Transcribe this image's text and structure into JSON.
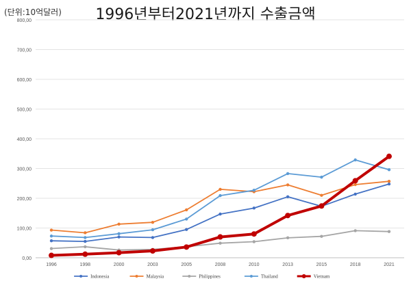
{
  "chart_data": {
    "type": "line",
    "title": "1996년부터2021년까지 수출금액",
    "unit_label": "(단위:10억달러)",
    "xlabel": "",
    "ylabel": "",
    "categories": [
      "1996",
      "1998",
      "2000",
      "2003",
      "2005",
      "2008",
      "2010",
      "2013",
      "2015",
      "2018",
      "2021"
    ],
    "ylim": [
      0,
      800
    ],
    "yticks": [
      "0,00",
      "100,00",
      "200,00",
      "300,00",
      "400,00",
      "500,00",
      "600,00",
      "700,00",
      "800,00"
    ],
    "grid": true,
    "legend_position": "bottom",
    "series": [
      {
        "name": "Indonesia",
        "color": "#4472c4",
        "values": [
          57,
          55,
          70,
          68,
          95,
          147,
          167,
          205,
          173,
          214,
          248
        ]
      },
      {
        "name": "Malaysia",
        "color": "#ed7d31",
        "values": [
          93,
          84,
          113,
          119,
          161,
          230,
          222,
          245,
          210,
          246,
          257
        ]
      },
      {
        "name": "Philippines",
        "color": "#a5a5a5",
        "values": [
          31,
          37,
          26,
          28,
          37,
          49,
          54,
          67,
          72,
          91,
          88
        ]
      },
      {
        "name": "Thailand",
        "color": "#5b9bd5",
        "values": [
          73,
          68,
          81,
          94,
          130,
          209,
          227,
          283,
          271,
          329,
          296
        ]
      },
      {
        "name": "Vietnam",
        "color": "#c00000",
        "values": [
          8,
          12,
          17,
          23,
          36,
          70,
          80,
          142,
          174,
          259,
          341
        ]
      }
    ]
  }
}
